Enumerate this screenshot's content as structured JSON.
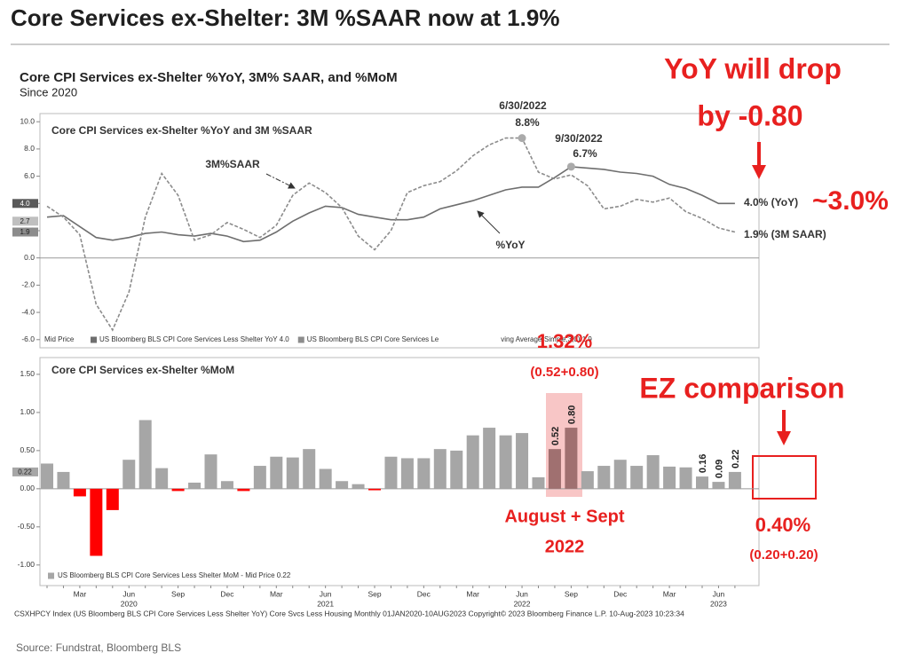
{
  "title": "Core Services ex-Shelter: 3M %SAAR now at 1.9%",
  "header": {
    "title": "Core CPI Services ex-Shelter %YoY, 3M% SAAR, and %MoM",
    "subtitle": "Since 2020"
  },
  "footer": "CSXHPCY Index (US Bloomberg BLS CPI Core Services Less Shelter YoY) Core Svcs Less Housing  Monthly 01JAN2020-10AUG2023 Copyright© 2023 Bloomberg Finance L.P. 10-Aug-2023 10:23:34",
  "source": "Source: Fundstrat, Bloomberg BLS",
  "callouts": {
    "yoy_drop": "YoY will drop",
    "by": "by -0.80",
    "approx": "~3.0%",
    "sum_value": "1.32%",
    "sum_parts": "(0.52+0.80)",
    "months": "August + Sept",
    "months_year": "2022",
    "ez": "EZ comparison",
    "ez_value": "0.40%",
    "ez_parts": "(0.20+0.20)"
  },
  "chart_data": [
    {
      "type": "line",
      "title": "Core CPI Services ex-Shelter %YoY and 3M %SAAR",
      "ylim": [
        -6.6,
        10.6
      ],
      "yticks": [
        {
          "value": -6,
          "label": "-6.0"
        },
        {
          "value": -4,
          "label": "-4.0"
        },
        {
          "value": -2,
          "label": "-2.0"
        },
        {
          "value": 0,
          "label": "0.0"
        },
        {
          "value": 2,
          "label": "2.0"
        },
        {
          "value": 4,
          "label": "4.0"
        },
        {
          "value": 6,
          "label": "6.0"
        },
        {
          "value": 8,
          "label": "8.0"
        },
        {
          "value": 10,
          "label": "10.0"
        }
      ],
      "zero_line": true,
      "legend_prefix": "Mid Price",
      "legend_suffix": "ving Average(Simple,3,0) 1.9",
      "axis_tags": [
        {
          "value": 4.0,
          "label": "4.0",
          "color": "#595959"
        },
        {
          "value": 2.7,
          "label": "2.7",
          "color": "#bfbfbf"
        },
        {
          "value": 1.9,
          "label": "1.9",
          "color": "#8c8c8c"
        }
      ],
      "series": [
        {
          "name": "US Bloomberg BLS CPI Core Services Less Shelter YoY 4.0",
          "color": "#6e6e6e",
          "line_style": "solid",
          "values": [
            3.0,
            3.1,
            2.3,
            1.5,
            1.3,
            1.5,
            1.8,
            1.9,
            1.7,
            1.6,
            1.8,
            1.6,
            1.2,
            1.3,
            1.9,
            2.7,
            3.3,
            3.8,
            3.7,
            3.2,
            3.0,
            2.8,
            2.8,
            3.0,
            3.6,
            3.9,
            4.2,
            4.6,
            5.0,
            5.2,
            5.2,
            5.9,
            6.7,
            6.6,
            6.5,
            6.3,
            6.2,
            6.0,
            5.4,
            5.1,
            4.6,
            4.0,
            4.0
          ]
        },
        {
          "name": "US Bloomberg BLS CPI Core Services Le",
          "color": "#8c8c8c",
          "line_style": "dashed",
          "values": [
            3.8,
            3.0,
            1.7,
            -3.4,
            -5.3,
            -2.5,
            3.0,
            6.2,
            4.6,
            1.3,
            1.7,
            2.6,
            2.1,
            1.5,
            2.4,
            4.6,
            5.5,
            4.8,
            3.7,
            1.6,
            0.6,
            2.0,
            4.8,
            5.3,
            5.6,
            6.4,
            7.5,
            8.3,
            8.8,
            8.8,
            6.3,
            5.8,
            6.1,
            5.3,
            3.6,
            3.8,
            4.3,
            4.1,
            4.4,
            3.4,
            2.9,
            2.2,
            1.9
          ]
        }
      ],
      "annotations": [
        {
          "text": "3M%SAAR"
        },
        {
          "text": "%YoY"
        },
        {
          "text": "6/30/2022",
          "value_text": "8.8%",
          "index": 29,
          "value": 8.8
        },
        {
          "text": "9/30/2022",
          "value_text": "6.7%",
          "index": 32,
          "value": 6.7
        },
        {
          "text": "4.0% (YoY)"
        },
        {
          "text": "1.9% (3M SAAR)"
        }
      ]
    },
    {
      "type": "bar",
      "title": "Core CPI Services ex-Shelter %MoM",
      "categories": [
        null,
        null,
        "Mar",
        null,
        null,
        "Jun",
        null,
        null,
        "Sep",
        null,
        null,
        "Dec",
        null,
        null,
        "Mar",
        null,
        null,
        "Jun",
        null,
        null,
        "Sep",
        null,
        null,
        "Dec",
        null,
        null,
        "Mar",
        null,
        null,
        "Jun",
        null,
        null,
        "Sep",
        null,
        null,
        "Dec",
        null,
        null,
        "Mar",
        null,
        null,
        "Jun",
        null
      ],
      "years": [
        "2020",
        "2021",
        "2022",
        "2023"
      ],
      "values": [
        0.33,
        0.22,
        -0.1,
        -0.88,
        -0.28,
        0.38,
        0.9,
        0.27,
        -0.03,
        0.08,
        0.45,
        0.1,
        -0.03,
        0.3,
        0.42,
        0.41,
        0.52,
        0.26,
        0.1,
        0.06,
        -0.02,
        0.42,
        0.4,
        0.4,
        0.52,
        0.5,
        0.7,
        0.8,
        0.7,
        0.73,
        0.15,
        0.52,
        0.8,
        0.23,
        0.3,
        0.38,
        0.3,
        0.44,
        0.29,
        0.28,
        0.16,
        0.09,
        0.22
      ],
      "value_labels": [
        null,
        null,
        null,
        null,
        null,
        null,
        null,
        null,
        null,
        null,
        null,
        null,
        null,
        null,
        null,
        null,
        null,
        null,
        null,
        null,
        null,
        null,
        null,
        null,
        null,
        null,
        null,
        null,
        null,
        null,
        null,
        "0.52",
        "0.80",
        null,
        null,
        null,
        null,
        null,
        null,
        null,
        "0.16",
        "0.09",
        "0.22"
      ],
      "color": "#a6a6a6",
      "negative_color": "#ff0000",
      "highlight_color": "#a07070",
      "ylim": [
        -1.27,
        1.72
      ],
      "yticks": [
        {
          "value": -1,
          "label": "-1.00"
        },
        {
          "value": -0.5,
          "label": "-0.50"
        },
        {
          "value": 0,
          "label": "0.00"
        },
        {
          "value": 0.5,
          "label": "0.50"
        },
        {
          "value": 1,
          "label": "1.00"
        },
        {
          "value": 1.5,
          "label": "1.50"
        }
      ],
      "zero_line": true,
      "legend": "US Bloomberg BLS CPI Core Services Less Shelter MoM - Mid Price 0.22",
      "axis_tags": [
        {
          "value": 0.22,
          "label": "0.22",
          "color": "#a6a6a6"
        }
      ]
    }
  ]
}
